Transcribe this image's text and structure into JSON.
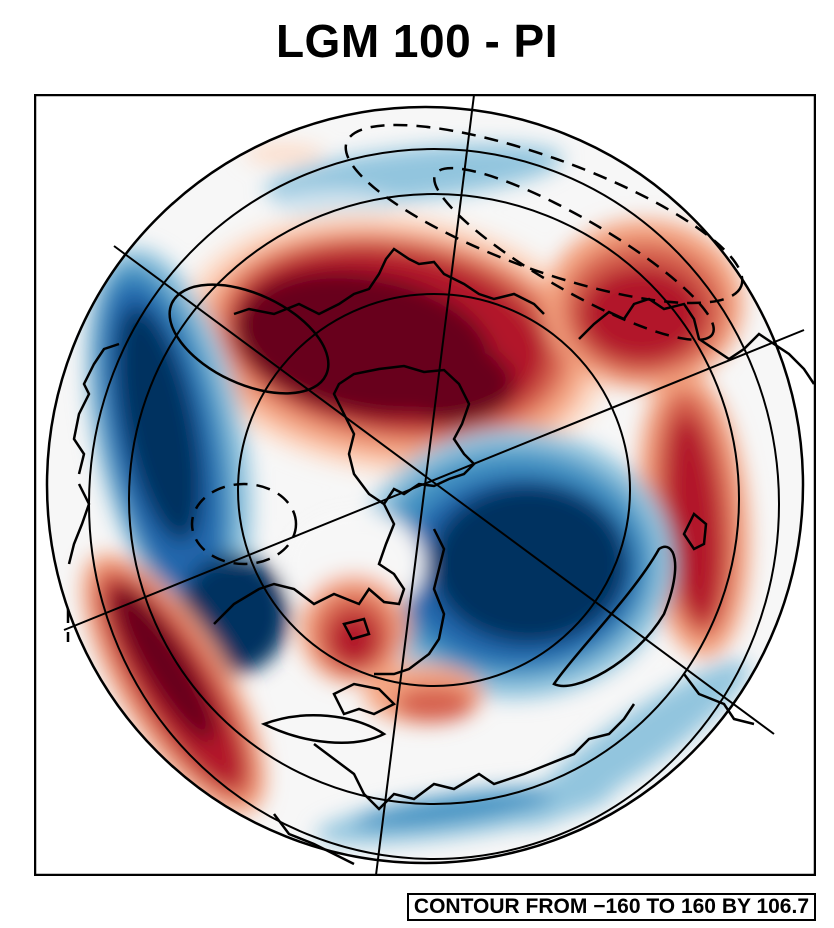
{
  "figure": {
    "title": "LGM 100 - PI",
    "contour_info": "CONTOUR FROM −160 TO 160 BY 106.7"
  },
  "colors": {
    "dark_red": "#67001f",
    "red": "#b2182b",
    "medium_red": "#d6604d",
    "light_red": "#f4a582",
    "pale_red": "#fddbc7",
    "neutral": "#f7f7f7",
    "pale_blue": "#d1e5f0",
    "light_blue": "#92c5de",
    "medium_blue": "#4393c3",
    "blue": "#2166ac",
    "dark_blue": "#053061"
  }
}
